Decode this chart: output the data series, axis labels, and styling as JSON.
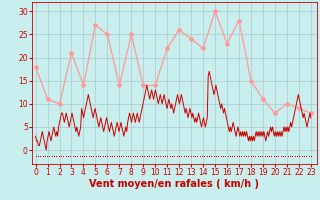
{
  "background_color": "#c8eeed",
  "grid_color": "#b0c8c8",
  "xlabel": "Vent moyen/en rafales ( km/h )",
  "xlabel_color": "#cc0000",
  "xlabel_fontsize": 7,
  "tick_color": "#cc0000",
  "tick_fontsize": 5.5,
  "ylim": [
    -3,
    32
  ],
  "yticks": [
    0,
    5,
    10,
    15,
    20,
    25,
    30
  ],
  "xtick_labels": [
    "0",
    "1",
    "2",
    "3",
    "4",
    "5",
    "6",
    "7",
    "8",
    "9",
    "10",
    "11",
    "12",
    "13",
    "14",
    "15",
    "16",
    "17",
    "18",
    "19",
    "20",
    "21",
    "22",
    "23"
  ],
  "wind_avg_color": "#cc0000",
  "wind_gust_color": "#ff9999",
  "wind_avg_linewidth": 0.7,
  "wind_gust_linewidth": 0.9,
  "wind_gust_marker": "D",
  "wind_gust_markersize": 2.0,
  "wind_gust_hours": [
    0,
    1,
    2,
    3,
    4,
    5,
    6,
    7,
    8,
    9,
    10,
    11,
    12,
    13,
    14,
    15,
    16,
    17,
    18,
    19,
    20,
    21,
    22,
    23
  ],
  "wind_gust_values": [
    18,
    11,
    10,
    21,
    14,
    27,
    25,
    14,
    25,
    14,
    14,
    22,
    26,
    24,
    22,
    30,
    23,
    28,
    15,
    11,
    8,
    10,
    9,
    8
  ],
  "wind_avg_y": [
    3,
    2,
    2,
    1,
    1,
    2,
    3,
    4,
    3,
    2,
    1,
    0,
    2,
    3,
    4,
    3,
    2,
    3,
    4,
    5,
    4,
    3,
    4,
    3,
    5,
    6,
    7,
    8,
    8,
    7,
    6,
    7,
    8,
    7,
    6,
    5,
    6,
    7,
    8,
    7,
    6,
    5,
    4,
    5,
    4,
    3,
    4,
    5,
    9,
    8,
    7,
    8,
    9,
    10,
    11,
    12,
    11,
    10,
    9,
    8,
    7,
    8,
    9,
    8,
    7,
    6,
    5,
    6,
    7,
    6,
    5,
    4,
    5,
    6,
    7,
    6,
    5,
    4,
    5,
    6,
    5,
    4,
    3,
    4,
    5,
    6,
    5,
    4,
    5,
    6,
    5,
    4,
    3,
    4,
    5,
    4,
    6,
    7,
    8,
    7,
    6,
    7,
    8,
    7,
    6,
    7,
    8,
    7,
    6,
    7,
    8,
    9,
    10,
    11,
    12,
    13,
    14,
    13,
    12,
    11,
    12,
    13,
    12,
    11,
    12,
    13,
    12,
    11,
    10,
    11,
    12,
    11,
    10,
    11,
    12,
    11,
    10,
    9,
    10,
    11,
    10,
    9,
    10,
    9,
    8,
    9,
    10,
    11,
    12,
    11,
    10,
    11,
    12,
    11,
    10,
    9,
    8,
    9,
    8,
    7,
    8,
    9,
    8,
    7,
    8,
    7,
    6,
    7,
    6,
    7,
    8,
    7,
    6,
    5,
    6,
    7,
    6,
    5,
    6,
    7,
    16,
    17,
    16,
    15,
    14,
    13,
    12,
    13,
    14,
    13,
    12,
    11,
    10,
    9,
    10,
    9,
    8,
    9,
    8,
    7,
    6,
    5,
    4,
    5,
    4,
    5,
    6,
    5,
    4,
    3,
    4,
    5,
    4,
    3,
    4,
    3,
    4,
    3,
    4,
    3,
    4,
    3,
    2,
    3,
    2,
    3,
    2,
    3,
    2,
    3,
    4,
    3,
    4,
    3,
    4,
    3,
    4,
    3,
    4,
    3,
    2,
    3,
    4,
    3,
    4,
    5,
    4,
    5,
    4,
    3,
    4,
    3,
    4,
    3,
    4,
    3,
    4,
    3,
    4,
    5,
    4,
    5,
    4,
    5,
    4,
    5,
    6,
    5,
    6,
    7,
    8,
    9,
    10,
    11,
    12,
    11,
    10,
    9,
    8,
    7,
    8,
    7,
    6,
    5,
    6,
    7,
    8,
    7
  ]
}
